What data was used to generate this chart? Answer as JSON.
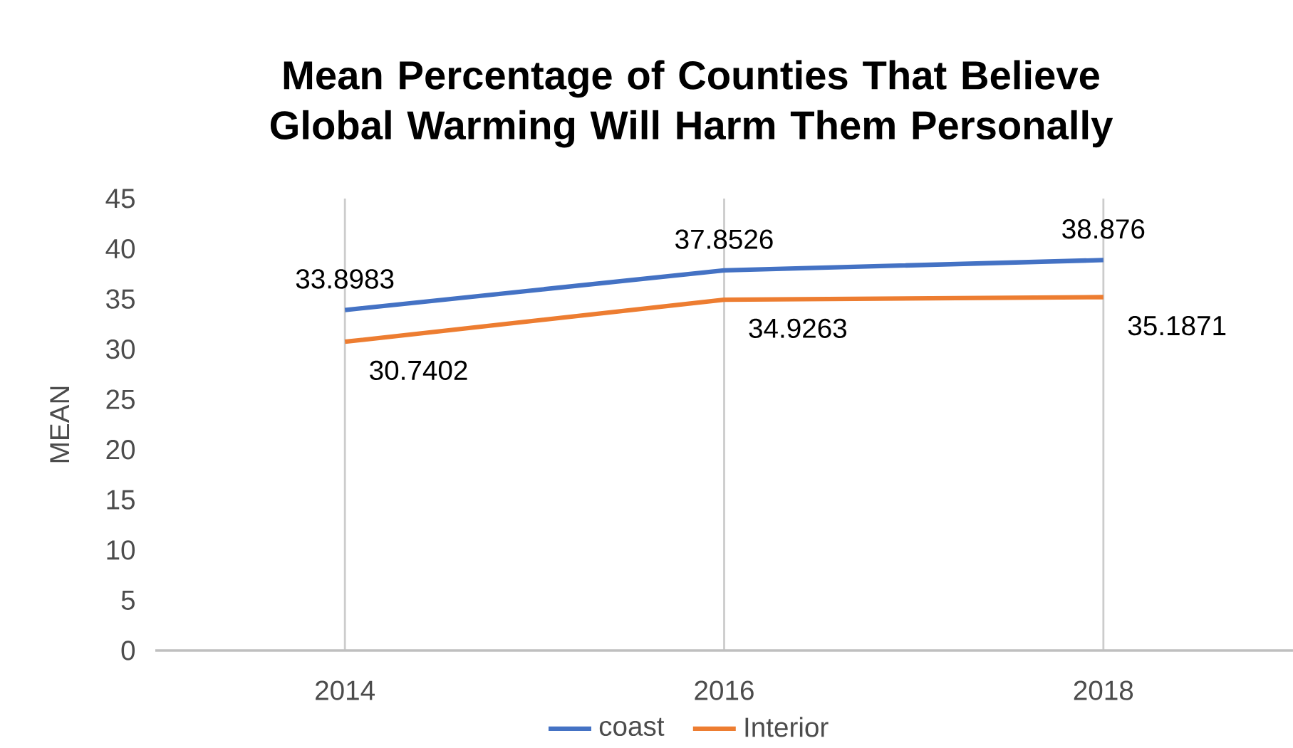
{
  "chart_data": {
    "type": "line",
    "title": "Mean Percentage of Counties That Believe Global Warming Will Harm Them Personally",
    "ylabel": "MEAN",
    "categories": [
      "2014",
      "2016",
      "2018"
    ],
    "series": [
      {
        "name": "coast",
        "color": "#4472c4",
        "values": [
          33.8983,
          37.8526,
          38.876
        ]
      },
      {
        "name": "Interior",
        "color": "#ed7d31",
        "values": [
          30.7402,
          34.9263,
          35.1871
        ]
      }
    ],
    "ylim": [
      0,
      45
    ],
    "yticks": [
      0,
      5,
      10,
      15,
      20,
      25,
      30,
      35,
      40,
      45
    ],
    "grid": "x",
    "legend": "bottom",
    "data_labels": true,
    "marker": "none",
    "line_style": "solid"
  }
}
